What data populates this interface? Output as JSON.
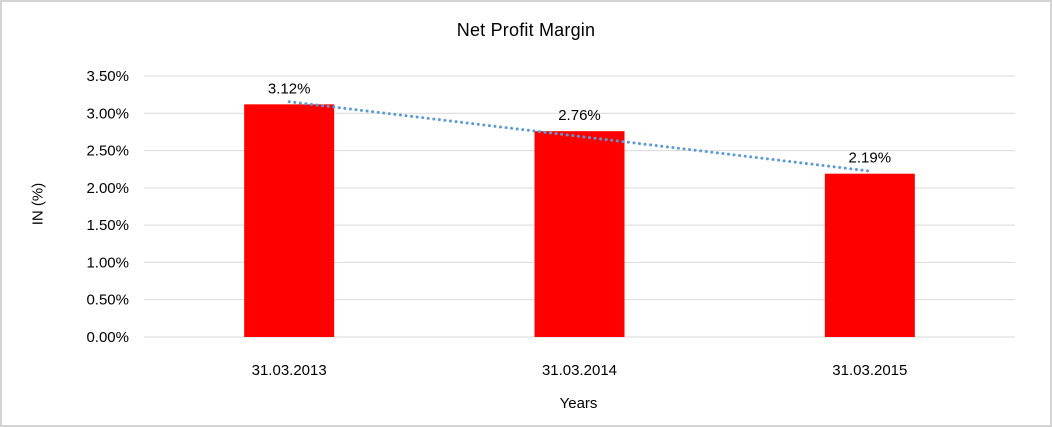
{
  "window": {
    "background": "#ffffff",
    "border_color": "#d4d4d4"
  },
  "chart_data": {
    "type": "bar",
    "title": "Net Profit Margin",
    "xlabel": "Years",
    "ylabel": "IN (%)",
    "categories": [
      "31.03.2013",
      "31.03.2014",
      "31.03.2015"
    ],
    "series": [
      {
        "name": "Net Profit Margin",
        "values": [
          3.12,
          2.76,
          2.19
        ]
      }
    ],
    "data_labels": [
      "3.12%",
      "2.76%",
      "2.19%"
    ],
    "y_ticks": [
      "0.00%",
      "0.50%",
      "1.00%",
      "1.50%",
      "2.00%",
      "2.50%",
      "3.00%",
      "3.50%"
    ],
    "ylim": [
      0,
      3.5
    ],
    "y_tick_step": 0.5,
    "grid": true,
    "legend": false,
    "bar_color": "#ff0000",
    "gridline_color": "#d9d9d9",
    "axis_text_color": "#000000",
    "trendline": {
      "type": "linear",
      "style": "dotted",
      "color": "#5b9bd5"
    }
  }
}
